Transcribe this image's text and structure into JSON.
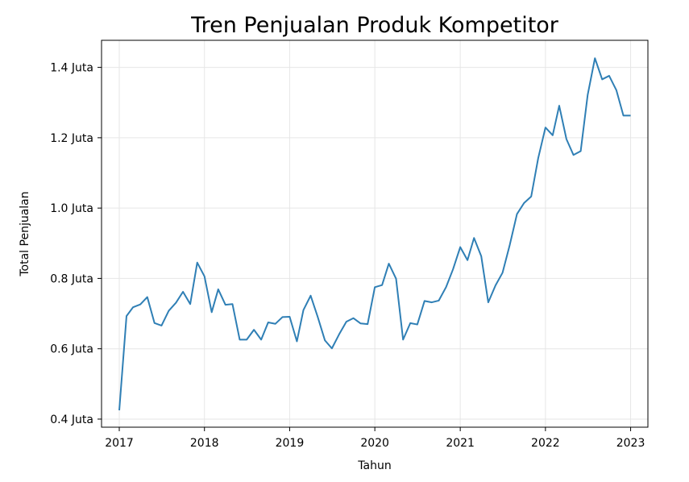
{
  "chart_data": {
    "type": "line",
    "title": "Tren Penjualan Produk Kompetitor",
    "xlabel": "Tahun",
    "ylabel": "Total Penjualan",
    "x_ticks": [
      "2017",
      "2018",
      "2019",
      "2020",
      "2021",
      "2022",
      "2023"
    ],
    "y_ticks": [
      "0.4 Juta",
      "0.6 Juta",
      "0.8 Juta",
      "1.0 Juta",
      "1.2 Juta",
      "1.4 Juta"
    ],
    "xlim": [
      "2016-10-17",
      "2023-03-16"
    ],
    "ylim": [
      0.377,
      1.477
    ],
    "y_unit": "Juta",
    "grid": true,
    "line_color": "#2f7fb5",
    "series": [
      {
        "x": [
          "2017-01",
          "2017-02",
          "2017-03",
          "2017-04",
          "2017-05",
          "2017-06",
          "2017-07",
          "2017-08",
          "2017-09",
          "2017-10",
          "2017-11",
          "2017-12",
          "2018-01",
          "2018-02",
          "2018-03",
          "2018-04",
          "2018-05",
          "2018-06",
          "2018-07",
          "2018-08",
          "2018-09",
          "2018-10",
          "2018-11",
          "2018-12",
          "2019-01",
          "2019-02",
          "2019-03",
          "2019-04",
          "2019-05",
          "2019-06",
          "2019-07",
          "2019-08",
          "2019-09",
          "2019-10",
          "2019-11",
          "2019-12",
          "2020-01",
          "2020-02",
          "2020-03",
          "2020-04",
          "2020-05",
          "2020-06",
          "2020-07",
          "2020-08",
          "2020-09",
          "2020-10",
          "2020-11",
          "2020-12",
          "2021-01",
          "2021-02",
          "2021-03",
          "2021-04",
          "2021-05",
          "2021-06",
          "2021-07",
          "2021-08",
          "2021-09",
          "2021-10",
          "2021-11",
          "2021-12",
          "2022-01",
          "2022-02",
          "2022-03",
          "2022-04",
          "2022-05",
          "2022-06",
          "2022-07",
          "2022-08",
          "2022-09",
          "2022-10",
          "2022-11",
          "2022-12",
          "2023-01"
        ],
        "values": [
          0.425,
          0.693,
          0.718,
          0.726,
          0.747,
          0.673,
          0.666,
          0.708,
          0.731,
          0.762,
          0.727,
          0.845,
          0.806,
          0.704,
          0.769,
          0.725,
          0.727,
          0.626,
          0.626,
          0.654,
          0.626,
          0.675,
          0.671,
          0.69,
          0.691,
          0.621,
          0.71,
          0.751,
          0.691,
          0.624,
          0.601,
          0.641,
          0.677,
          0.687,
          0.672,
          0.67,
          0.775,
          0.781,
          0.842,
          0.799,
          0.626,
          0.673,
          0.669,
          0.736,
          0.732,
          0.737,
          0.775,
          0.826,
          0.889,
          0.852,
          0.915,
          0.863,
          0.732,
          0.78,
          0.816,
          0.895,
          0.983,
          1.014,
          1.033,
          1.142,
          1.229,
          1.207,
          1.291,
          1.196,
          1.151,
          1.162,
          1.322,
          1.426,
          1.366,
          1.376,
          1.335,
          1.263,
          1.263
        ]
      }
    ]
  }
}
